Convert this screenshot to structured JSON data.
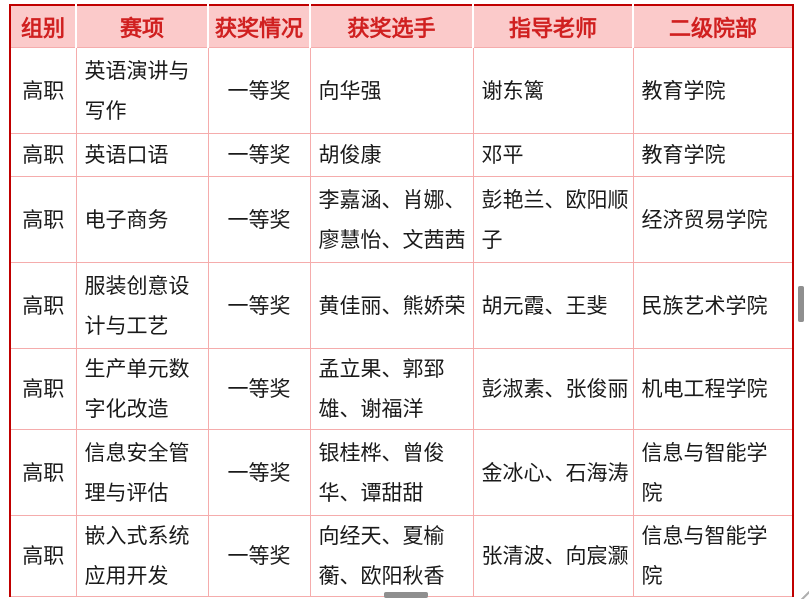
{
  "colors": {
    "outer_border": "#c00000",
    "grid_line": "#f5acac",
    "header_background": "#fbcaca",
    "header_text": "#d02020",
    "body_text": "#1a1a1a",
    "scrollbar_thumb": "#8f8f8f"
  },
  "table": {
    "header": {
      "columns": [
        "组别",
        "赛项",
        "获奖情况",
        "获奖选手",
        "指导老师",
        "二级院部"
      ]
    },
    "rows": [
      {
        "group": "高职",
        "event": "英语演讲与写作",
        "award": "一等奖",
        "winners": "向华强",
        "teachers": "谢东篱",
        "department": "教育学院"
      },
      {
        "group": "高职",
        "event": "英语口语",
        "award": "一等奖",
        "winners": "胡俊康",
        "teachers": "邓平",
        "department": "教育学院"
      },
      {
        "group": "高职",
        "event": "电子商务",
        "award": "一等奖",
        "winners": "李嘉涵、肖娜、廖慧怡、文茜茜",
        "teachers": "彭艳兰、欧阳顺子",
        "department": "经济贸易学院"
      },
      {
        "group": "高职",
        "event": "服装创意设计与工艺",
        "award": "一等奖",
        "winners": "黄佳丽、熊娇荣",
        "teachers": "胡元霞、王斐",
        "department": "民族艺术学院"
      },
      {
        "group": "高职",
        "event": "生产单元数字化改造",
        "award": "一等奖",
        "winners": "孟立果、郭郅雄、谢福洋",
        "teachers": "彭淑素、张俊丽",
        "department": "机电工程学院"
      },
      {
        "group": "高职",
        "event": "信息安全管理与评估",
        "award": "一等奖",
        "winners": "银桂桦、曾俊华、谭甜甜",
        "teachers": "金冰心、石海涛",
        "department": "信息与智能学院"
      },
      {
        "group": "高职",
        "event": "嵌入式系统应用开发",
        "award": "一等奖",
        "winners": "向经天、夏榆蘅、欧阳秋香",
        "teachers": "张清波、向宸灏",
        "department": "信息与智能学院"
      }
    ]
  }
}
